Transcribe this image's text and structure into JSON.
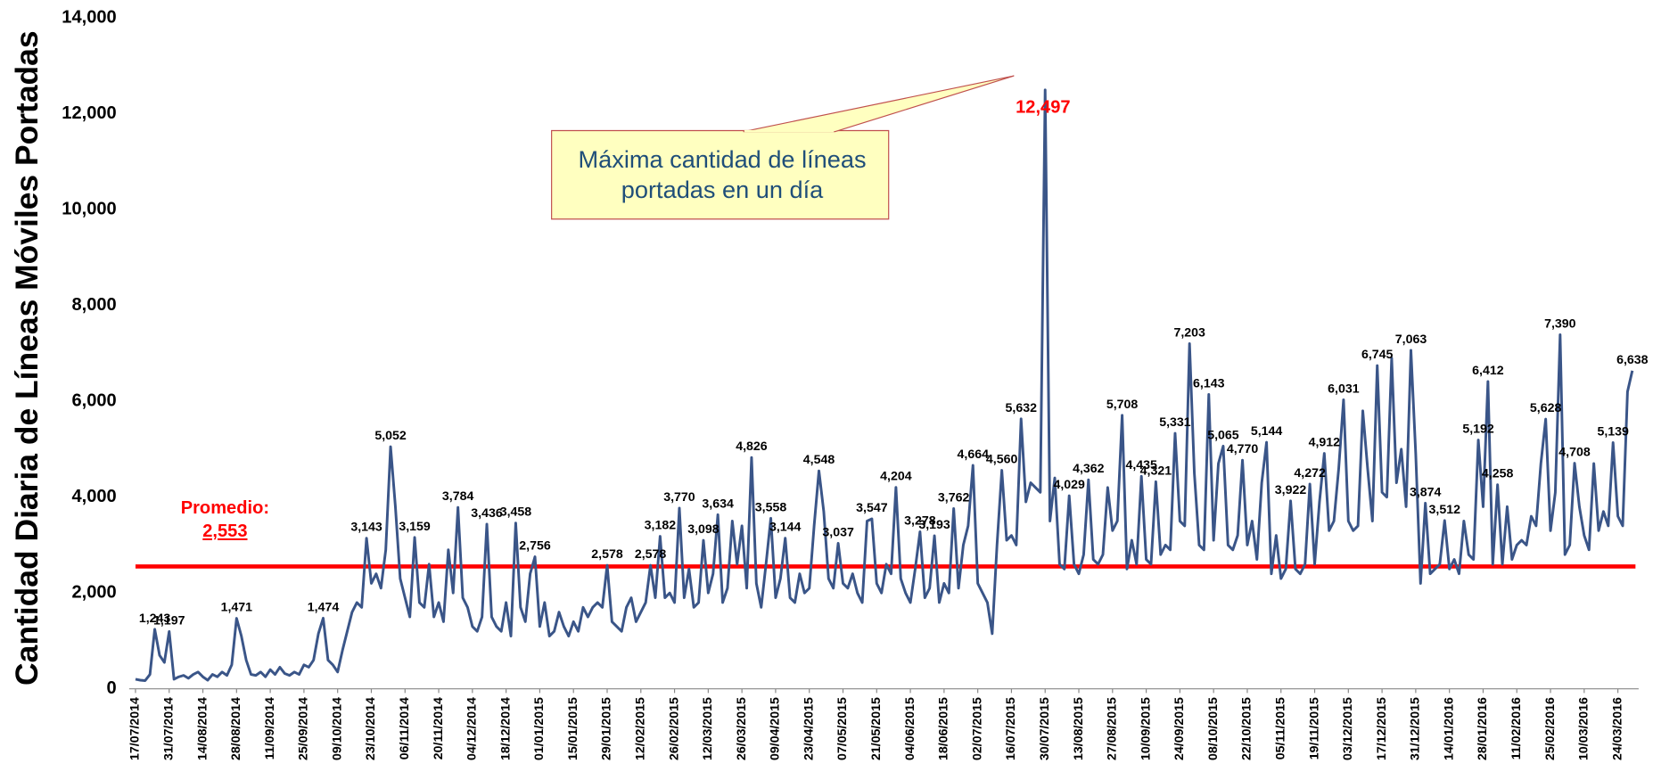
{
  "chart_data": {
    "type": "line",
    "y_label": "Cantidad Diaria de Líneas Móviles Portadas",
    "color": "#3a5588",
    "highlight_color": "#ff0000",
    "ylim": [
      0,
      14000
    ],
    "yticks": [
      0,
      {
        "value": 2000,
        "label": "2,000"
      },
      {
        "value": 4000,
        "label": "4,000"
      },
      {
        "value": 6000,
        "label": "6,000"
      },
      {
        "value": 8000,
        "label": "8,000"
      },
      {
        "value": 10000,
        "label": "10,000"
      },
      {
        "value": 12000,
        "label": "12,000"
      },
      {
        "value": 14000,
        "label": "14,000"
      }
    ],
    "average": {
      "title": "Promedio:",
      "value": 2553,
      "label": "2,553"
    },
    "annotation": [
      "Máxima cantidad de líneas",
      "portadas en un día"
    ],
    "categories": [
      "17/07/2014",
      null,
      null,
      null,
      null,
      null,
      null,
      "31/07/2014",
      null,
      null,
      null,
      null,
      null,
      null,
      "14/08/2014",
      null,
      null,
      null,
      null,
      null,
      null,
      "28/08/2014",
      null,
      null,
      null,
      null,
      null,
      null,
      "11/09/2014",
      null,
      null,
      null,
      null,
      null,
      null,
      "25/09/2014",
      null,
      null,
      null,
      null,
      null,
      null,
      "09/10/2014",
      null,
      null,
      null,
      null,
      null,
      null,
      "23/10/2014",
      null,
      null,
      null,
      null,
      null,
      null,
      "06/11/2014",
      null,
      null,
      null,
      null,
      null,
      null,
      "20/11/2014",
      null,
      null,
      null,
      null,
      null,
      null,
      "04/12/2014",
      null,
      null,
      null,
      null,
      null,
      null,
      "18/12/2014",
      null,
      null,
      null,
      null,
      null,
      null,
      "01/01/2015",
      null,
      null,
      null,
      null,
      null,
      null,
      "15/01/2015",
      null,
      null,
      null,
      null,
      null,
      null,
      "29/01/2015",
      null,
      null,
      null,
      null,
      null,
      null,
      "12/02/2015",
      null,
      null,
      null,
      null,
      null,
      null,
      "26/02/2015",
      null,
      null,
      null,
      null,
      null,
      null,
      "12/03/2015",
      null,
      null,
      null,
      null,
      null,
      null,
      "26/03/2015",
      null,
      null,
      null,
      null,
      null,
      null,
      "09/04/2015",
      null,
      null,
      null,
      null,
      null,
      null,
      "23/04/2015",
      null,
      null,
      null,
      null,
      null,
      null,
      "07/05/2015",
      null,
      null,
      null,
      null,
      null,
      null,
      "21/05/2015",
      null,
      null,
      null,
      null,
      null,
      null,
      "04/06/2015",
      null,
      null,
      null,
      null,
      null,
      null,
      "18/06/2015",
      null,
      null,
      null,
      null,
      null,
      null,
      "02/07/2015",
      null,
      null,
      null,
      null,
      null,
      null,
      "16/07/2015",
      null,
      null,
      null,
      null,
      null,
      null,
      "30/07/2015",
      null,
      null,
      null,
      null,
      null,
      null,
      "13/08/2015",
      null,
      null,
      null,
      null,
      null,
      null,
      "27/08/2015",
      null,
      null,
      null,
      null,
      null,
      null,
      "10/09/2015",
      null,
      null,
      null,
      null,
      null,
      null,
      "24/09/2015",
      null,
      null,
      null,
      null,
      null,
      null,
      "08/10/2015",
      null,
      null,
      null,
      null,
      null,
      null,
      "22/10/2015",
      null,
      null,
      null,
      null,
      null,
      null,
      "05/11/2015",
      null,
      null,
      null,
      null,
      null,
      null,
      "19/11/2015",
      null,
      null,
      null,
      null,
      null,
      null,
      "03/12/2015",
      null,
      null,
      null,
      null,
      null,
      null,
      "17/12/2015",
      null,
      null,
      null,
      null,
      null,
      null,
      "31/12/2015",
      null,
      null,
      null,
      null,
      null,
      null,
      "14/01/2016",
      null,
      null,
      null,
      null,
      null,
      null,
      "28/01/2016",
      null,
      null,
      null,
      null,
      null,
      null,
      "11/02/2016",
      null,
      null,
      null,
      null,
      null,
      null,
      "25/02/2016",
      null,
      null,
      null,
      null,
      null,
      null,
      "10/03/2016",
      null,
      null,
      null,
      null,
      null,
      null,
      "24/03/2016",
      null,
      null,
      null
    ],
    "values": [
      200,
      180,
      170,
      300,
      1243,
      700,
      550,
      1197,
      200,
      250,
      280,
      220,
      300,
      350,
      250,
      180,
      300,
      250,
      350,
      280,
      500,
      1471,
      1100,
      600,
      300,
      280,
      350,
      250,
      400,
      300,
      450,
      320,
      280,
      350,
      300,
      500,
      450,
      600,
      1150,
      1474,
      600,
      500,
      350,
      800,
      1200,
      1600,
      1800,
      1700,
      3143,
      2200,
      2400,
      2100,
      2900,
      5052,
      3800,
      2300,
      1900,
      1500,
      3159,
      1800,
      1700,
      2600,
      1500,
      1800,
      1400,
      2900,
      2000,
      3784,
      1900,
      1700,
      1300,
      1200,
      1500,
      3436,
      1500,
      1300,
      1200,
      1800,
      1100,
      3458,
      1700,
      1400,
      2400,
      2756,
      1300,
      1800,
      1100,
      1200,
      1600,
      1300,
      1100,
      1400,
      1200,
      1700,
      1500,
      1700,
      1800,
      1700,
      2578,
      1400,
      1300,
      1200,
      1700,
      1900,
      1400,
      1600,
      1800,
      2578,
      1900,
      3182,
      1900,
      2000,
      1800,
      3770,
      1900,
      2500,
      1700,
      1800,
      3098,
      2000,
      2400,
      3634,
      1800,
      2100,
      3500,
      2600,
      3400,
      2100,
      4826,
      2200,
      1700,
      2600,
      3558,
      1900,
      2300,
      3144,
      1900,
      1800,
      2400,
      2000,
      2100,
      3400,
      4548,
      3700,
      2300,
      2100,
      3037,
      2200,
      2100,
      2400,
      2000,
      1800,
      3500,
      3547,
      2200,
      2000,
      2600,
      2400,
      4204,
      2300,
      2000,
      1800,
      2500,
      3278,
      1900,
      2100,
      3193,
      1800,
      2200,
      2000,
      3762,
      2100,
      3000,
      3400,
      4664,
      2200,
      2000,
      1800,
      1150,
      3000,
      4560,
      3100,
      3200,
      3000,
      5632,
      3900,
      4300,
      4200,
      4100,
      12497,
      3500,
      4400,
      2600,
      2500,
      4029,
      2600,
      2400,
      2800,
      4362,
      2700,
      2600,
      2800,
      4200,
      3300,
      3500,
      5708,
      2500,
      3100,
      2600,
      4435,
      2700,
      2600,
      4321,
      2800,
      3000,
      2900,
      5331,
      3500,
      3400,
      7203,
      4500,
      3000,
      2900,
      6143,
      3100,
      4700,
      5065,
      3000,
      2900,
      3200,
      4770,
      3000,
      3500,
      2700,
      4300,
      5144,
      2400,
      3200,
      2300,
      2500,
      3922,
      2500,
      2400,
      2600,
      4272,
      2600,
      3900,
      4912,
      3300,
      3500,
      4600,
      6031,
      3500,
      3300,
      3400,
      5800,
      4600,
      3500,
      6745,
      4100,
      4000,
      6900,
      4300,
      5000,
      3800,
      7063,
      4900,
      2200,
      3874,
      2400,
      2500,
      2600,
      3512,
      2500,
      2700,
      2400,
      3500,
      2800,
      2700,
      5192,
      3800,
      6412,
      2600,
      4258,
      2600,
      3800,
      2700,
      3000,
      3100,
      3000,
      3600,
      3400,
      4700,
      5628,
      3300,
      4100,
      7390,
      2800,
      3000,
      4708,
      3800,
      3200,
      2900,
      4700,
      3300,
      3700,
      3400,
      5139,
      3600,
      3400,
      6200,
      6638
    ],
    "value_labels": [
      null,
      null,
      null,
      null,
      "1,243",
      null,
      null,
      "1,197",
      null,
      null,
      null,
      null,
      null,
      null,
      null,
      null,
      null,
      null,
      null,
      null,
      null,
      "1,471",
      null,
      null,
      null,
      null,
      null,
      null,
      null,
      null,
      null,
      null,
      null,
      null,
      null,
      null,
      null,
      null,
      null,
      "1,474",
      null,
      null,
      null,
      null,
      null,
      null,
      null,
      null,
      "3,143",
      null,
      null,
      null,
      null,
      "5,052",
      null,
      null,
      null,
      null,
      "3,159",
      null,
      null,
      null,
      null,
      null,
      null,
      null,
      null,
      "3,784",
      null,
      null,
      null,
      null,
      null,
      "3,436",
      null,
      null,
      null,
      null,
      null,
      "3,458",
      null,
      null,
      null,
      "2,756",
      null,
      null,
      null,
      null,
      null,
      null,
      null,
      null,
      null,
      null,
      null,
      null,
      null,
      null,
      "2,578",
      null,
      null,
      null,
      null,
      null,
      null,
      null,
      null,
      "2,578",
      null,
      "3,182",
      null,
      null,
      null,
      "3,770",
      null,
      null,
      null,
      null,
      "3,098",
      null,
      null,
      "3,634",
      null,
      null,
      null,
      null,
      null,
      null,
      "4,826",
      null,
      null,
      null,
      "3,558",
      null,
      null,
      "3,144",
      null,
      null,
      null,
      null,
      null,
      null,
      "4,548",
      null,
      null,
      null,
      "3,037",
      null,
      null,
      null,
      null,
      null,
      null,
      "3,547",
      null,
      null,
      null,
      null,
      "4,204",
      null,
      null,
      null,
      null,
      "3,278",
      null,
      null,
      "3,193",
      null,
      null,
      null,
      "3,762",
      null,
      null,
      null,
      "4,664",
      null,
      null,
      null,
      null,
      null,
      "4,560",
      null,
      null,
      null,
      "5,632",
      null,
      null,
      null,
      null,
      "12,497",
      null,
      null,
      null,
      null,
      "4,029",
      null,
      null,
      null,
      "4,362",
      null,
      null,
      null,
      null,
      null,
      null,
      "5,708",
      null,
      null,
      null,
      "4,435",
      null,
      null,
      "4,321",
      null,
      null,
      null,
      "5,331",
      null,
      null,
      "7,203",
      null,
      null,
      null,
      "6,143",
      null,
      null,
      "5,065",
      null,
      null,
      null,
      "4,770",
      null,
      null,
      null,
      null,
      "5,144",
      null,
      null,
      null,
      null,
      "3,922",
      null,
      null,
      null,
      "4,272",
      null,
      null,
      "4,912",
      null,
      null,
      null,
      "6,031",
      null,
      null,
      null,
      null,
      null,
      null,
      "6,745",
      null,
      null,
      null,
      null,
      null,
      null,
      "7,063",
      null,
      null,
      "3,874",
      null,
      null,
      null,
      "3,512",
      null,
      null,
      null,
      null,
      null,
      null,
      "5,192",
      null,
      "6,412",
      null,
      "4,258",
      null,
      null,
      null,
      null,
      null,
      null,
      null,
      null,
      null,
      "5,628",
      null,
      null,
      "7,390",
      null,
      null,
      "4,708",
      null,
      null,
      null,
      null,
      null,
      null,
      null,
      "5,139",
      null,
      null,
      null,
      "6,638"
    ]
  }
}
